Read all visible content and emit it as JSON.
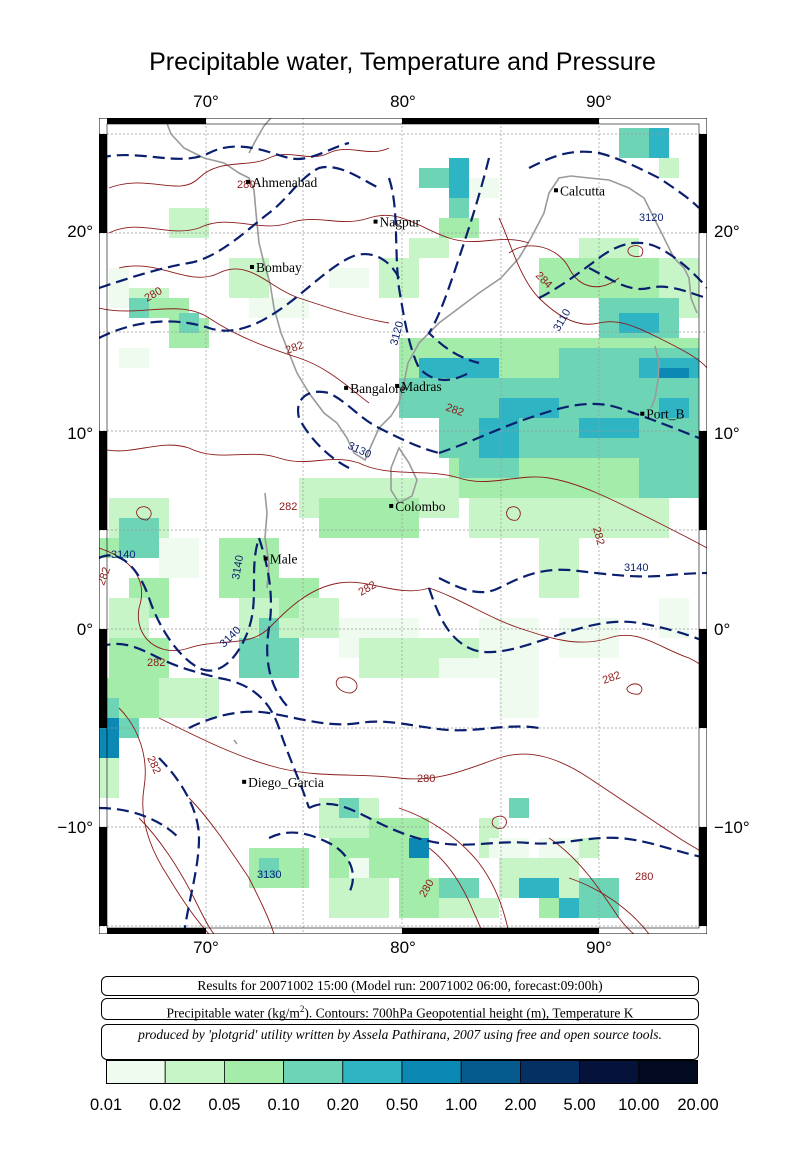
{
  "title": "Precipitable water, Temperature and Pressure",
  "map": {
    "lon_labels": [
      "70°",
      "80°",
      "90°"
    ],
    "lat_labels": [
      "20°",
      "10°",
      "0°",
      "−10°"
    ],
    "lon_range": [
      65,
      96
    ],
    "lat_range": [
      -15,
      26
    ],
    "cities": [
      {
        "name": "Ahmenabad",
        "lon": 72.6,
        "lat": 23.0
      },
      {
        "name": "Calcutta",
        "lon": 88.3,
        "lat": 22.6
      },
      {
        "name": "Nagpur",
        "lon": 79.1,
        "lat": 21.1
      },
      {
        "name": "Bombay",
        "lon": 72.8,
        "lat": 18.9
      },
      {
        "name": "Madras",
        "lon": 80.2,
        "lat": 13.0
      },
      {
        "name": "Bangalore",
        "lon": 77.6,
        "lat": 12.9
      },
      {
        "name": "Port_B",
        "lon": 92.7,
        "lat": 11.6
      },
      {
        "name": "Colombo",
        "lon": 79.9,
        "lat": 6.9
      },
      {
        "name": "Male",
        "lon": 73.5,
        "lat": 4.2
      },
      {
        "name": "Diego_Garcia",
        "lon": 72.4,
        "lat": -7.3
      }
    ],
    "height_contour_labels": [
      "3120",
      "3110",
      "3120",
      "3130",
      "3140",
      "3140",
      "3140",
      "3140",
      "3130"
    ],
    "temperature_contour_labels": [
      "280",
      "280",
      "284",
      "282",
      "282",
      "282",
      "282",
      "282",
      "282",
      "282",
      "282",
      "282",
      "280",
      "280"
    ]
  },
  "info": {
    "line1": "Results for 20071002 15:00 (Model run: 20071002 06:00, forecast:09:00h)",
    "line2_pre": "Precipitable water (kg/m",
    "line2_sup": "2",
    "line2_post": ").  Contours: 700hPa Geopotential height (m), Temperature K",
    "line3": "produced by 'plotgrid' utility written by Assela Pathirana, 2007 using free and open source tools."
  },
  "colorbar": {
    "ticks": [
      "0.01",
      "0.02",
      "0.05",
      "0.10",
      "0.20",
      "0.50",
      "1.00",
      "2.00",
      "5.00",
      "10.00",
      "20.00"
    ],
    "colors": [
      "#eefbee",
      "#c8f5c8",
      "#a4ecaa",
      "#6dd4b6",
      "#2fb4c4",
      "#0b88b4",
      "#045a8c",
      "#043063",
      "#05133a",
      "#030a20"
    ]
  }
}
